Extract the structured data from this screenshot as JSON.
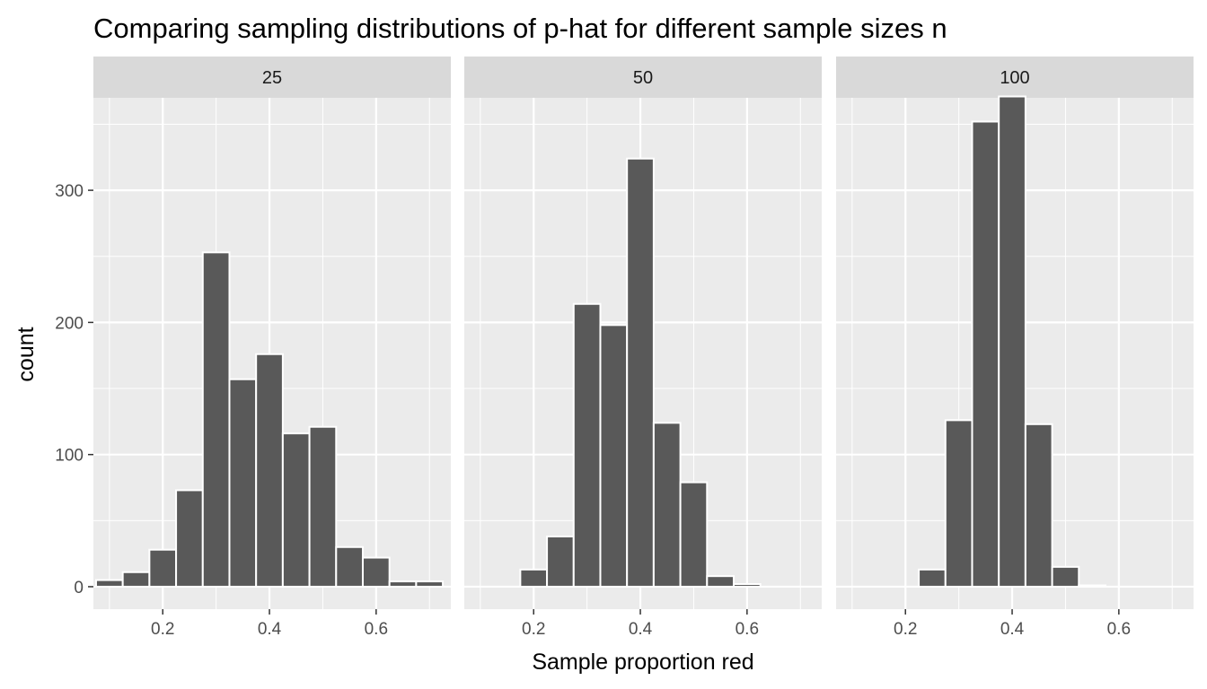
{
  "chart_data": {
    "type": "bar",
    "title": "Comparing sampling distributions of p-hat for different sample sizes n",
    "xlabel": "Sample proportion red",
    "ylabel": "count",
    "xlim": [
      0.07,
      0.74
    ],
    "ylim": [
      -17,
      370
    ],
    "x_ticks": [
      0.2,
      0.4,
      0.6
    ],
    "x_tick_labels": [
      "0.2",
      "0.4",
      "0.6"
    ],
    "y_ticks": [
      0,
      100,
      200,
      300
    ],
    "y_tick_labels": [
      "0",
      "100",
      "200",
      "300"
    ],
    "bin_width": 0.05,
    "grid": true,
    "colors": {
      "panel_bg": "#ebebeb",
      "strip_bg": "#d9d9d9",
      "grid": "#ffffff",
      "bar_fill": "#595959",
      "bar_outline": "#ffffff"
    },
    "panels": [
      {
        "label": "25",
        "bin_centers": [
          0.1,
          0.15,
          0.2,
          0.25,
          0.3,
          0.35,
          0.4,
          0.45,
          0.5,
          0.55,
          0.6,
          0.65,
          0.7
        ],
        "counts": [
          5,
          11,
          28,
          73,
          253,
          157,
          176,
          116,
          121,
          30,
          22,
          4,
          4
        ]
      },
      {
        "label": "50",
        "bin_centers": [
          0.2,
          0.25,
          0.3,
          0.35,
          0.4,
          0.45,
          0.5,
          0.55,
          0.6
        ],
        "counts": [
          13,
          38,
          214,
          198,
          324,
          124,
          79,
          8,
          2
        ]
      },
      {
        "label": "100",
        "bin_centers": [
          0.25,
          0.3,
          0.35,
          0.4,
          0.45,
          0.5,
          0.55
        ],
        "counts": [
          13,
          126,
          352,
          371,
          123,
          15,
          1
        ]
      }
    ]
  }
}
